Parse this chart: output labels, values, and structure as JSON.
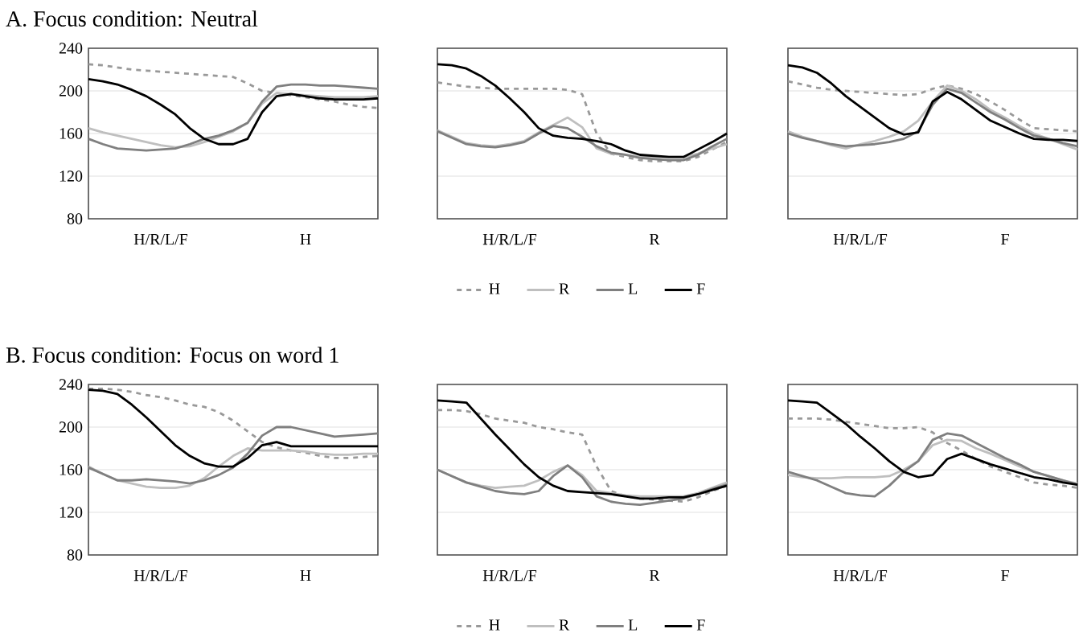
{
  "chart_data": [
    {
      "type": "line",
      "title": "A. Focus condition: Neutral",
      "categories": [
        null,
        null,
        null,
        null,
        null,
        "H/R/L/F",
        null,
        null,
        null,
        null,
        null,
        null,
        null,
        null,
        null,
        "H",
        null,
        null,
        null,
        null,
        null
      ],
      "ylim": [
        80,
        240
      ],
      "yticks": [
        80,
        120,
        160,
        200,
        240
      ],
      "grid": "y",
      "series": [
        {
          "color": "#999999",
          "line_style": "dashed",
          "values": [
            225,
            224,
            222,
            220,
            219,
            218,
            217,
            216,
            215,
            214,
            213,
            207,
            200,
            198,
            196,
            194,
            192,
            190,
            187,
            185,
            184
          ]
        },
        {
          "color": "#bfbfbf",
          "line_style": "solid",
          "values": [
            165,
            161,
            158,
            155,
            152,
            149,
            147,
            148,
            152,
            157,
            162,
            170,
            188,
            198,
            197,
            196,
            195,
            194,
            194,
            194,
            195
          ]
        },
        {
          "color": "#7f7f7f",
          "line_style": "solid",
          "values": [
            155,
            150,
            146,
            145,
            144,
            145,
            146,
            150,
            155,
            158,
            163,
            170,
            190,
            204,
            206,
            206,
            205,
            205,
            204,
            203,
            202
          ]
        },
        {
          "color": "#000000",
          "line_style": "solid",
          "values": [
            211,
            209,
            206,
            201,
            195,
            187,
            178,
            165,
            155,
            150,
            150,
            155,
            180,
            195,
            197,
            195,
            193,
            192,
            192,
            192,
            193
          ]
        }
      ]
    },
    {
      "type": "line",
      "categories": [
        null,
        null,
        null,
        null,
        null,
        "H/R/L/F",
        null,
        null,
        null,
        null,
        null,
        null,
        null,
        null,
        null,
        "R",
        null,
        null,
        null,
        null,
        null
      ],
      "ylim": [
        80,
        240
      ],
      "yticks": [
        80,
        120,
        160,
        200,
        240
      ],
      "grid": "y",
      "tick_labels": "x",
      "legend": "bottom",
      "series": [
        {
          "name": "H",
          "color": "#999999",
          "line_style": "dashed",
          "values": [
            208,
            206,
            204,
            203,
            202,
            202,
            202,
            202,
            202,
            201,
            197,
            160,
            141,
            138,
            135,
            134,
            134,
            134,
            138,
            145,
            152
          ]
        },
        {
          "name": "R",
          "color": "#bfbfbf",
          "line_style": "solid",
          "values": [
            163,
            157,
            151,
            149,
            148,
            150,
            153,
            161,
            168,
            175,
            166,
            146,
            141,
            140,
            138,
            138,
            138,
            138,
            141,
            146,
            150
          ]
        },
        {
          "name": "L",
          "color": "#7f7f7f",
          "line_style": "solid",
          "values": [
            162,
            156,
            150,
            148,
            147,
            149,
            152,
            160,
            167,
            165,
            157,
            148,
            142,
            140,
            137,
            136,
            135,
            135,
            140,
            148,
            155
          ]
        },
        {
          "name": "F",
          "color": "#000000",
          "line_style": "solid",
          "values": [
            225,
            224,
            221,
            214,
            205,
            193,
            180,
            165,
            158,
            156,
            155,
            153,
            150,
            144,
            140,
            139,
            138,
            138,
            145,
            152,
            160
          ]
        }
      ]
    },
    {
      "type": "line",
      "categories": [
        null,
        null,
        null,
        null,
        null,
        "H/R/L/F",
        null,
        null,
        null,
        null,
        null,
        null,
        null,
        null,
        null,
        "F",
        null,
        null,
        null,
        null,
        null
      ],
      "ylim": [
        80,
        240
      ],
      "yticks": [
        80,
        120,
        160,
        200,
        240
      ],
      "grid": "y",
      "tick_labels": "x",
      "series": [
        {
          "color": "#999999",
          "line_style": "dashed",
          "values": [
            209,
            206,
            203,
            201,
            200,
            199,
            198,
            197,
            196,
            197,
            202,
            205,
            202,
            197,
            190,
            182,
            173,
            165,
            164,
            163,
            162
          ]
        },
        {
          "color": "#bfbfbf",
          "line_style": "solid",
          "values": [
            162,
            157,
            153,
            149,
            146,
            150,
            153,
            157,
            162,
            172,
            190,
            205,
            200,
            192,
            182,
            175,
            167,
            160,
            155,
            150,
            145
          ]
        },
        {
          "color": "#7f7f7f",
          "line_style": "solid",
          "values": [
            160,
            156,
            153,
            150,
            148,
            149,
            150,
            152,
            155,
            162,
            187,
            202,
            198,
            189,
            180,
            173,
            165,
            158,
            155,
            151,
            148
          ]
        },
        {
          "color": "#000000",
          "line_style": "solid",
          "values": [
            224,
            222,
            217,
            207,
            195,
            185,
            175,
            165,
            159,
            161,
            190,
            199,
            192,
            182,
            172,
            166,
            160,
            155,
            154,
            154,
            153
          ]
        }
      ]
    },
    {
      "type": "line",
      "title": "B. Focus condition: Focus on word 1",
      "categories": [
        null,
        null,
        null,
        null,
        null,
        "H/R/L/F",
        null,
        null,
        null,
        null,
        null,
        null,
        null,
        null,
        null,
        "H",
        null,
        null,
        null,
        null,
        null
      ],
      "ylim": [
        80,
        240
      ],
      "yticks": [
        80,
        120,
        160,
        200,
        240
      ],
      "grid": "y",
      "series": [
        {
          "color": "#999999",
          "line_style": "dashed",
          "values": [
            236,
            236,
            235,
            233,
            230,
            228,
            225,
            221,
            219,
            214,
            206,
            196,
            186,
            181,
            178,
            176,
            173,
            171,
            171,
            172,
            173
          ]
        },
        {
          "color": "#bfbfbf",
          "line_style": "solid",
          "values": [
            163,
            156,
            150,
            147,
            144,
            143,
            143,
            145,
            152,
            163,
            173,
            180,
            178,
            178,
            178,
            177,
            175,
            174,
            174,
            175,
            175
          ]
        },
        {
          "color": "#7f7f7f",
          "line_style": "solid",
          "values": [
            162,
            156,
            150,
            150,
            151,
            150,
            149,
            147,
            150,
            155,
            162,
            175,
            192,
            200,
            200,
            197,
            194,
            191,
            192,
            193,
            194
          ]
        },
        {
          "color": "#000000",
          "line_style": "solid",
          "values": [
            235,
            234,
            231,
            221,
            209,
            196,
            183,
            173,
            166,
            163,
            163,
            171,
            183,
            186,
            182,
            182,
            182,
            182,
            182,
            182,
            182
          ]
        }
      ]
    },
    {
      "type": "line",
      "categories": [
        null,
        null,
        null,
        null,
        null,
        "H/R/L/F",
        null,
        null,
        null,
        null,
        null,
        null,
        null,
        null,
        null,
        "R",
        null,
        null,
        null,
        null,
        null
      ],
      "ylim": [
        80,
        240
      ],
      "yticks": [
        80,
        120,
        160,
        200,
        240
      ],
      "grid": "y",
      "tick_labels": "x",
      "legend": "bottom",
      "series": [
        {
          "name": "H",
          "color": "#999999",
          "line_style": "dashed",
          "values": [
            216,
            216,
            215,
            212,
            208,
            206,
            204,
            200,
            198,
            195,
            193,
            163,
            140,
            135,
            133,
            132,
            131,
            130,
            134,
            140,
            145
          ]
        },
        {
          "name": "R",
          "color": "#bfbfbf",
          "line_style": "solid",
          "values": [
            160,
            154,
            148,
            145,
            143,
            144,
            145,
            150,
            158,
            164,
            155,
            140,
            138,
            136,
            135,
            135,
            135,
            135,
            138,
            143,
            148
          ]
        },
        {
          "name": "L",
          "color": "#7f7f7f",
          "line_style": "solid",
          "values": [
            160,
            154,
            148,
            144,
            140,
            138,
            137,
            140,
            154,
            164,
            153,
            135,
            130,
            128,
            127,
            129,
            131,
            133,
            137,
            142,
            146
          ]
        },
        {
          "name": "F",
          "color": "#000000",
          "line_style": "solid",
          "values": [
            225,
            224,
            223,
            208,
            193,
            179,
            165,
            153,
            145,
            140,
            139,
            138,
            137,
            135,
            133,
            133,
            134,
            134,
            137,
            141,
            145
          ]
        }
      ]
    },
    {
      "type": "line",
      "categories": [
        null,
        null,
        null,
        null,
        null,
        "H/R/L/F",
        null,
        null,
        null,
        null,
        null,
        null,
        null,
        null,
        null,
        "F",
        null,
        null,
        null,
        null,
        null
      ],
      "ylim": [
        80,
        240
      ],
      "yticks": [
        80,
        120,
        160,
        200,
        240
      ],
      "grid": "y",
      "tick_labels": "x",
      "series": [
        {
          "color": "#999999",
          "line_style": "dashed",
          "values": [
            208,
            208,
            208,
            207,
            205,
            203,
            201,
            199,
            199,
            200,
            195,
            185,
            178,
            170,
            163,
            158,
            153,
            148,
            146,
            145,
            143
          ]
        },
        {
          "color": "#bfbfbf",
          "line_style": "solid",
          "values": [
            155,
            153,
            152,
            152,
            153,
            153,
            153,
            154,
            160,
            168,
            183,
            188,
            187,
            180,
            175,
            169,
            163,
            158,
            154,
            150,
            147
          ]
        },
        {
          "color": "#7f7f7f",
          "line_style": "solid",
          "values": [
            158,
            154,
            150,
            144,
            138,
            136,
            135,
            145,
            158,
            168,
            188,
            194,
            192,
            185,
            178,
            171,
            165,
            158,
            154,
            150,
            146
          ]
        },
        {
          "color": "#000000",
          "line_style": "solid",
          "values": [
            225,
            224,
            223,
            213,
            203,
            191,
            180,
            168,
            158,
            153,
            155,
            170,
            175,
            170,
            165,
            161,
            157,
            153,
            151,
            148,
            146
          ]
        }
      ]
    }
  ]
}
